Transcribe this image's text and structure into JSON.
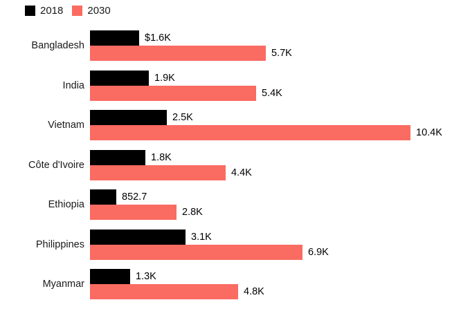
{
  "chart_data": {
    "type": "bar",
    "orientation": "horizontal",
    "title": "",
    "xlabel": "",
    "ylabel": "",
    "grid": false,
    "legend_position": "top-left",
    "xlim": [
      0,
      10400
    ],
    "categories": [
      "Bangladesh",
      "India",
      "Vietnam",
      "Côte d'Ivoire",
      "Ethiopia",
      "Philippines",
      "Myanmar"
    ],
    "series": [
      {
        "name": "2018",
        "color": "#000000",
        "values": [
          1600,
          1900,
          2500,
          1800,
          852.7,
          3100,
          1300
        ],
        "labels": [
          "$1.6K",
          "1.9K",
          "2.5K",
          "1.8K",
          "852.7",
          "3.1K",
          "1.3K"
        ]
      },
      {
        "name": "2030",
        "color": "#fa6b62",
        "values": [
          5700,
          5400,
          10400,
          4400,
          2800,
          6900,
          4800
        ],
        "labels": [
          "5.7K",
          "5.4K",
          "10.4K",
          "4.4K",
          "2.8K",
          "6.9K",
          "4.8K"
        ]
      }
    ]
  }
}
